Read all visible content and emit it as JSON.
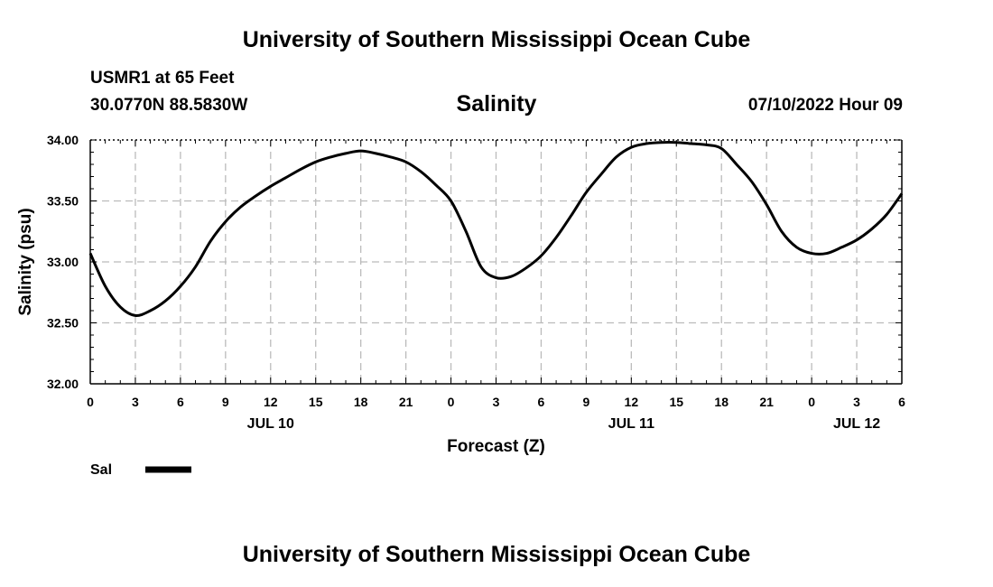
{
  "header": {
    "title": "University of Southern Mississippi Ocean Cube",
    "station": "USMR1 at 65 Feet",
    "coords": "30.0770N  88.5830W",
    "datetime": "07/10/2022 Hour 09"
  },
  "footer": {
    "title": "University of Southern Mississippi Ocean Cube"
  },
  "chart_data": {
    "type": "line",
    "title": "Salinity",
    "xlabel": "Forecast (Z)",
    "ylabel": "Salinity (psu)",
    "ylim": [
      32.0,
      34.0
    ],
    "xlim": [
      0,
      54
    ],
    "yticks": [
      32.0,
      32.5,
      33.0,
      33.5,
      34.0
    ],
    "ytick_labels": [
      "32.00",
      "32.50",
      "33.00",
      "33.50",
      "34.00"
    ],
    "xticks": [
      0,
      3,
      6,
      9,
      12,
      15,
      18,
      21,
      24,
      27,
      30,
      33,
      36,
      39,
      42,
      45,
      48,
      51,
      54
    ],
    "xtick_labels": [
      "0",
      "3",
      "6",
      "9",
      "12",
      "15",
      "18",
      "21",
      "0",
      "3",
      "6",
      "9",
      "12",
      "15",
      "18",
      "21",
      "0",
      "3",
      "6"
    ],
    "day_labels": [
      {
        "x": 12,
        "label": "JUL 10"
      },
      {
        "x": 36,
        "label": "JUL 11"
      },
      {
        "x": 51,
        "label": "JUL 12"
      }
    ],
    "grid": true,
    "series": [
      {
        "name": "Sal",
        "color": "#000000",
        "x": [
          0,
          1,
          2,
          3,
          4,
          5,
          6,
          7,
          8,
          9,
          10,
          11,
          12,
          13,
          14,
          15,
          16,
          17,
          18,
          19,
          20,
          21,
          22,
          23,
          24,
          25,
          26,
          27,
          28,
          29,
          30,
          31,
          32,
          33,
          34,
          35,
          36,
          37,
          38,
          39,
          40,
          41,
          42,
          43,
          44,
          45,
          46,
          47,
          48,
          49,
          50,
          51,
          52,
          53,
          54
        ],
        "values": [
          33.07,
          32.8,
          32.63,
          32.56,
          32.6,
          32.68,
          32.8,
          32.96,
          33.17,
          33.33,
          33.45,
          33.54,
          33.62,
          33.69,
          33.76,
          33.82,
          33.86,
          33.89,
          33.91,
          33.89,
          33.86,
          33.82,
          33.74,
          33.63,
          33.5,
          33.25,
          32.96,
          32.87,
          32.88,
          32.95,
          33.05,
          33.2,
          33.38,
          33.57,
          33.72,
          33.86,
          33.94,
          33.97,
          33.98,
          33.98,
          33.97,
          33.96,
          33.93,
          33.8,
          33.66,
          33.47,
          33.25,
          33.12,
          33.07,
          33.07,
          33.12,
          33.18,
          33.27,
          33.39,
          33.56
        ]
      }
    ],
    "legend": [
      {
        "label": "Sal",
        "color": "#000000"
      }
    ],
    "legend_position": "bottom-left"
  }
}
